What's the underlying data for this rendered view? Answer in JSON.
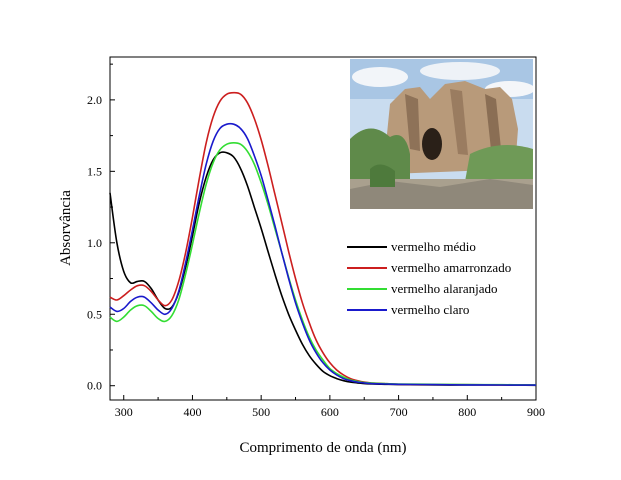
{
  "chart_data": {
    "type": "line",
    "title": "",
    "xlabel": "Comprimento de onda (nm)",
    "ylabel": "Absorvância",
    "xlim": [
      280,
      900
    ],
    "ylim": [
      -0.1,
      2.3
    ],
    "xticks": [
      300,
      400,
      500,
      600,
      700,
      800,
      900
    ],
    "xtick_labels": [
      "300",
      "400",
      "500",
      "600",
      "700",
      "800",
      "900"
    ],
    "yticks": [
      0.0,
      0.5,
      1.0,
      1.5,
      2.0
    ],
    "ytick_labels": [
      "0.0",
      "0.5",
      "1.0",
      "1.5",
      "2.0"
    ],
    "grid": false,
    "legend_position": "center-right",
    "series": [
      {
        "name": "vermelho médio",
        "color": "#000000",
        "x": [
          280,
          290,
          300,
          310,
          320,
          330,
          340,
          350,
          360,
          370,
          380,
          390,
          400,
          410,
          420,
          430,
          440,
          450,
          460,
          470,
          480,
          490,
          500,
          510,
          520,
          530,
          540,
          550,
          560,
          570,
          580,
          590,
          600,
          610,
          620,
          630,
          640,
          650,
          660,
          680,
          700,
          750,
          800,
          850,
          900
        ],
        "y": [
          1.35,
          1.0,
          0.8,
          0.72,
          0.73,
          0.73,
          0.68,
          0.6,
          0.54,
          0.55,
          0.65,
          0.83,
          1.05,
          1.28,
          1.46,
          1.58,
          1.63,
          1.63,
          1.6,
          1.52,
          1.4,
          1.25,
          1.1,
          0.94,
          0.78,
          0.63,
          0.5,
          0.39,
          0.29,
          0.21,
          0.15,
          0.1,
          0.07,
          0.05,
          0.035,
          0.025,
          0.02,
          0.015,
          0.012,
          0.01,
          0.008,
          0.005,
          0.005,
          0.005,
          0.003
        ]
      },
      {
        "name": "vermelho amarronzado",
        "color": "#cc1f1f",
        "x": [
          280,
          290,
          300,
          310,
          320,
          330,
          340,
          350,
          360,
          370,
          380,
          390,
          400,
          410,
          420,
          430,
          440,
          450,
          460,
          470,
          480,
          490,
          500,
          510,
          520,
          530,
          540,
          550,
          560,
          570,
          580,
          590,
          600,
          610,
          620,
          630,
          640,
          650,
          660,
          680,
          700,
          750,
          800,
          850,
          900
        ],
        "y": [
          0.62,
          0.6,
          0.63,
          0.67,
          0.7,
          0.7,
          0.66,
          0.6,
          0.56,
          0.6,
          0.73,
          0.93,
          1.18,
          1.45,
          1.7,
          1.88,
          1.99,
          2.04,
          2.05,
          2.04,
          1.98,
          1.87,
          1.72,
          1.54,
          1.34,
          1.14,
          0.94,
          0.75,
          0.58,
          0.44,
          0.32,
          0.23,
          0.16,
          0.11,
          0.075,
          0.05,
          0.035,
          0.025,
          0.02,
          0.015,
          0.01,
          0.008,
          0.007,
          0.006,
          0.005
        ]
      },
      {
        "name": "vermelho alaranjado",
        "color": "#33dd33",
        "x": [
          280,
          290,
          300,
          310,
          320,
          330,
          340,
          350,
          360,
          370,
          380,
          390,
          400,
          410,
          420,
          430,
          440,
          450,
          460,
          470,
          480,
          490,
          500,
          510,
          520,
          530,
          540,
          550,
          560,
          570,
          580,
          590,
          600,
          610,
          620,
          630,
          640,
          650,
          660,
          680,
          700,
          750,
          800,
          850,
          900
        ],
        "y": [
          0.48,
          0.45,
          0.48,
          0.53,
          0.56,
          0.56,
          0.52,
          0.47,
          0.45,
          0.49,
          0.6,
          0.78,
          0.99,
          1.21,
          1.41,
          1.56,
          1.65,
          1.69,
          1.7,
          1.69,
          1.64,
          1.55,
          1.42,
          1.27,
          1.1,
          0.93,
          0.76,
          0.6,
          0.46,
          0.34,
          0.25,
          0.18,
          0.12,
          0.085,
          0.06,
          0.04,
          0.03,
          0.022,
          0.018,
          0.015,
          0.012,
          0.01,
          0.008,
          0.007,
          0.006
        ]
      },
      {
        "name": "vermelho claro",
        "color": "#1a1acc",
        "x": [
          280,
          290,
          300,
          310,
          320,
          330,
          340,
          350,
          360,
          370,
          380,
          390,
          400,
          410,
          420,
          430,
          440,
          450,
          460,
          470,
          480,
          490,
          500,
          510,
          520,
          530,
          540,
          550,
          560,
          570,
          580,
          590,
          600,
          610,
          620,
          630,
          640,
          650,
          660,
          680,
          700,
          750,
          800,
          850,
          900
        ],
        "y": [
          0.55,
          0.52,
          0.54,
          0.59,
          0.62,
          0.62,
          0.58,
          0.53,
          0.5,
          0.54,
          0.66,
          0.86,
          1.09,
          1.33,
          1.55,
          1.71,
          1.8,
          1.83,
          1.83,
          1.8,
          1.73,
          1.61,
          1.47,
          1.3,
          1.12,
          0.93,
          0.75,
          0.58,
          0.44,
          0.32,
          0.23,
          0.16,
          0.11,
          0.075,
          0.05,
          0.035,
          0.025,
          0.02,
          0.015,
          0.012,
          0.01,
          0.008,
          0.006,
          0.005,
          0.004
        ]
      }
    ]
  },
  "inset": {
    "image": "photo of a red sandstone rock formation with trees",
    "sky_color": "#c9dcef",
    "rock_color": "#b89a7a",
    "foliage_color": "#5f8a4a"
  }
}
